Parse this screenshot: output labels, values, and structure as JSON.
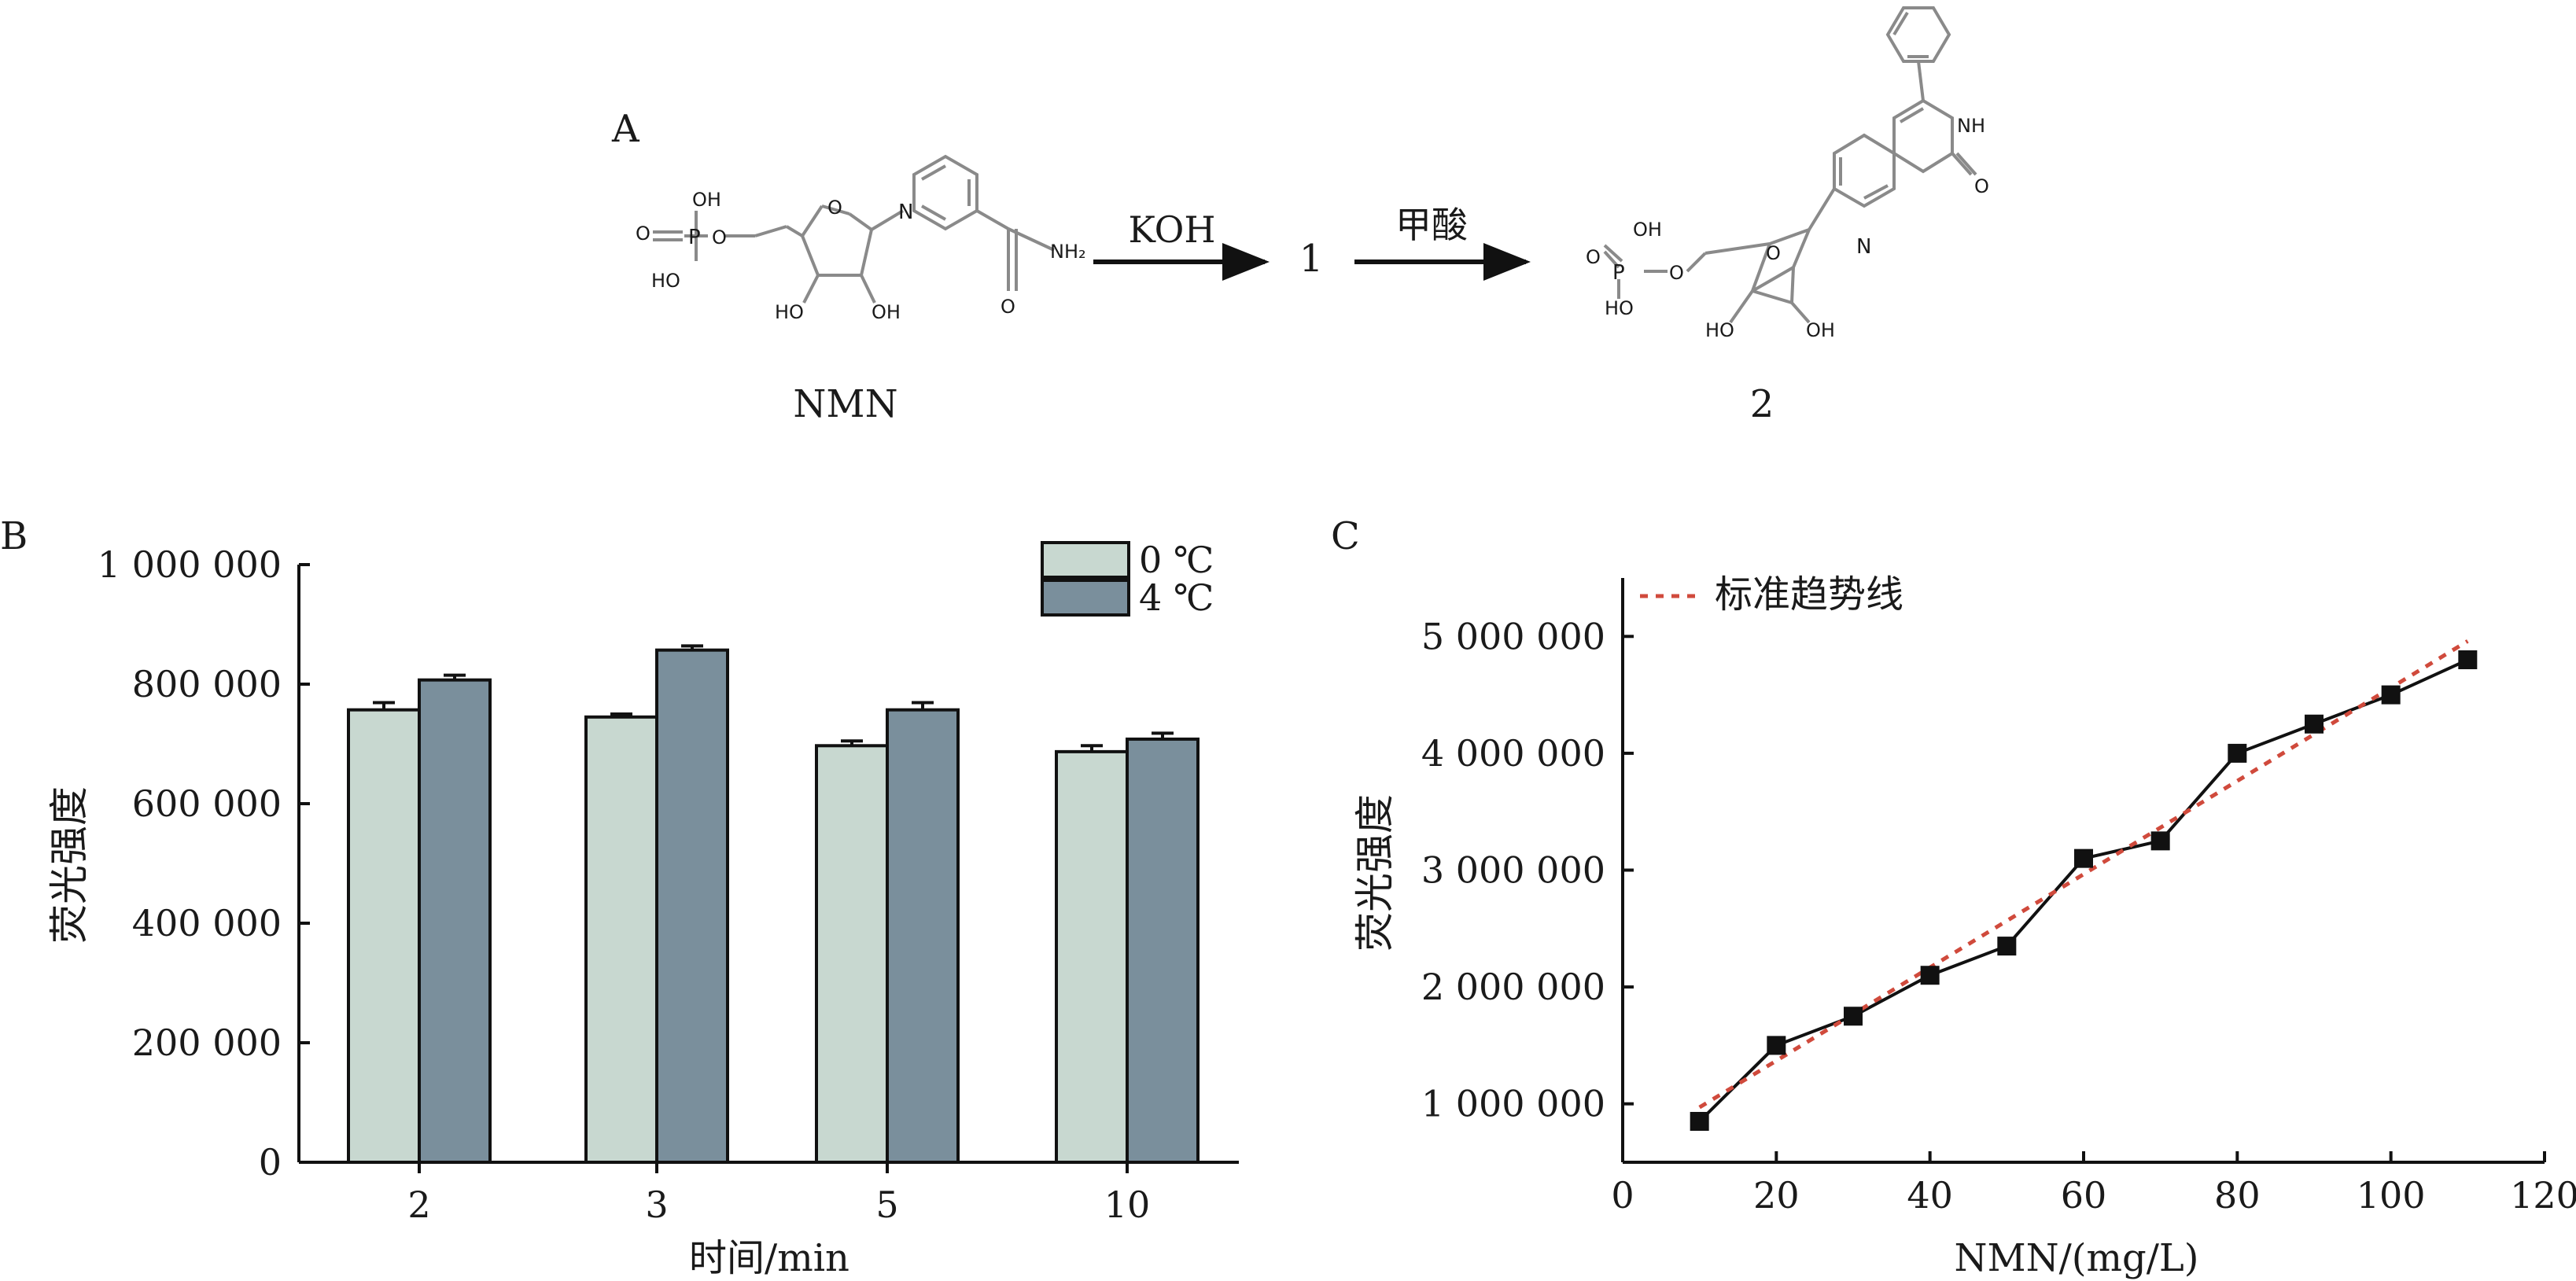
{
  "panels": {
    "a": {
      "label": "A"
    },
    "b": {
      "label": "B"
    },
    "c": {
      "label": "C"
    }
  },
  "scheme": {
    "reactant_name": "NMN",
    "step1_reagent": "KOH",
    "intermediate": "1",
    "step2_reagent": "甲酸",
    "product_name": "2",
    "atoms": {
      "oh": "OH",
      "ho": "HO",
      "o": "O",
      "p": "P",
      "n": "N",
      "nh2": "NH₂",
      "nh": "NH"
    }
  },
  "colors": {
    "bar_0c": "#c8d8d0",
    "bar_4c": "#7a8f9c",
    "line": "#111111",
    "trend": "#d04a3c",
    "oxygen": "#e05050",
    "phosphorus": "#e0a020",
    "nitrogen": "#3060d0",
    "bond": "#8a8a8a"
  },
  "chart_data": [
    {
      "type": "bar",
      "panel": "B",
      "categories": [
        "2",
        "3",
        "5",
        "10"
      ],
      "series": [
        {
          "name": "0 ℃",
          "values": [
            757000,
            745000,
            697000,
            687000
          ],
          "errors": [
            12000,
            5000,
            8000,
            10000
          ]
        },
        {
          "name": "4 ℃",
          "values": [
            807000,
            857000,
            757000,
            708000
          ],
          "errors": [
            8000,
            7000,
            12000,
            10000
          ]
        }
      ],
      "xlabel": "时间/min",
      "ylabel": "荧光强度",
      "ylim": [
        0,
        1000000
      ],
      "yticks": [
        0,
        200000,
        400000,
        600000,
        800000,
        1000000
      ],
      "ytick_labels": [
        "0",
        "200 000",
        "400 000",
        "600 000",
        "800 000",
        "1 000 000"
      ],
      "legend_placement": "top-right",
      "grid": false
    },
    {
      "type": "line",
      "panel": "C",
      "x": [
        10,
        20,
        30,
        40,
        50,
        60,
        70,
        80,
        90,
        100,
        110
      ],
      "series": [
        {
          "values": [
            850000,
            1500000,
            1750000,
            2100000,
            2350000,
            3100000,
            3250000,
            4000000,
            4250000,
            4500000,
            4800000
          ]
        },
        {
          "name": "标准趋势线",
          "style": "dotted",
          "x": [
            10,
            110
          ],
          "values": [
            970000,
            4960000
          ]
        }
      ],
      "xlabel": "NMN/(mg/L)",
      "ylabel": "荧光强度",
      "xlim": [
        0,
        120
      ],
      "ylim": [
        500000,
        5500000
      ],
      "xticks": [
        0,
        20,
        40,
        60,
        80,
        100,
        120
      ],
      "yticks": [
        1000000,
        2000000,
        3000000,
        4000000,
        5000000
      ],
      "ytick_labels": [
        "1 000 000",
        "2 000 000",
        "3 000 000",
        "4 000 000",
        "5 000 000"
      ],
      "legend_placement": "top-left",
      "grid": false
    }
  ]
}
